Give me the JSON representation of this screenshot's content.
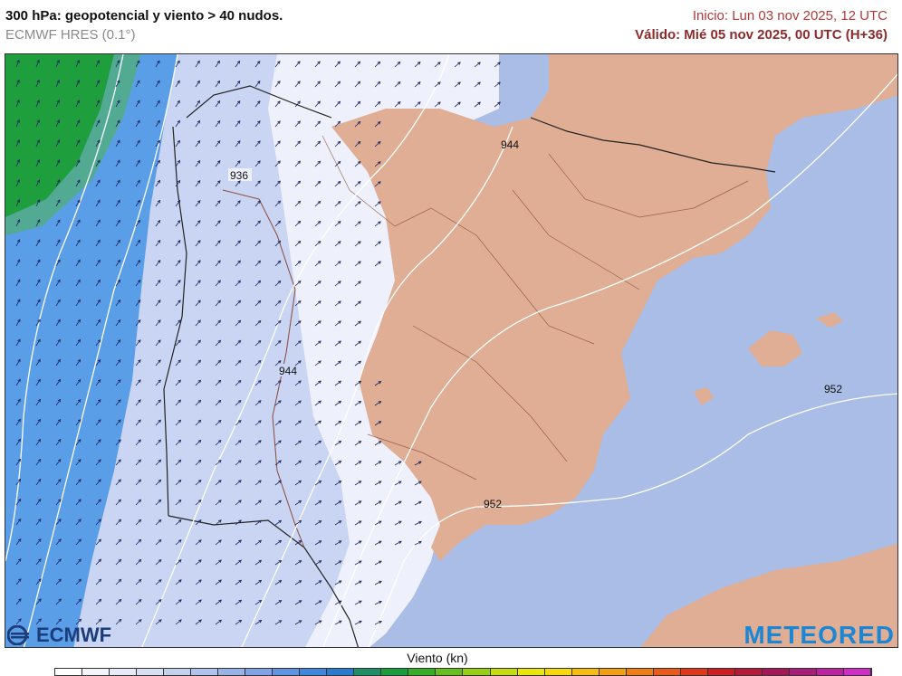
{
  "header": {
    "title": "300 hPa: geopotencial y viento > 40 nudos.",
    "model": "ECMWF HRES (0.1°)",
    "init": "Inicio: Lun 03 nov 2025, 12 UTC",
    "valid": "Válido: Mié 05 nov 2025, 00 UTC (H+36)"
  },
  "map": {
    "contour_labels": [
      "936",
      "944",
      "944",
      "952",
      "952"
    ],
    "colors": {
      "sea": "#a9bde6",
      "land": "#dfae94",
      "wind_light": "#eef1fb",
      "wind_medium": "#c9d5f2",
      "wind_strong": "#5b9ee8",
      "wind_jet": "#1f9e3e",
      "contour": "#ffffff",
      "border": "#8a4a3a",
      "arrow": "#1d2560"
    }
  },
  "logos": {
    "left": "ECMWF",
    "right": "METEORED"
  },
  "legend": {
    "title": "Viento (kn)",
    "colors": [
      "#ffffff",
      "#f4f5fc",
      "#e6ebf8",
      "#d6dff4",
      "#c4d2f0",
      "#afc3ec",
      "#98b3e8",
      "#7fa3e5",
      "#5e94e2",
      "#3f86de",
      "#2a7ad0",
      "#1f8f66",
      "#1a9d3c",
      "#38ad2a",
      "#66bf1f",
      "#97cf16",
      "#c4dc10",
      "#e9e60d",
      "#f7d80f",
      "#f6bd12",
      "#f39f15",
      "#ef7e18",
      "#ea5a1b",
      "#e0361c",
      "#cc1f24",
      "#b71a3a",
      "#a31955",
      "#a91c7a",
      "#bc23a0",
      "#d02dc4"
    ]
  }
}
